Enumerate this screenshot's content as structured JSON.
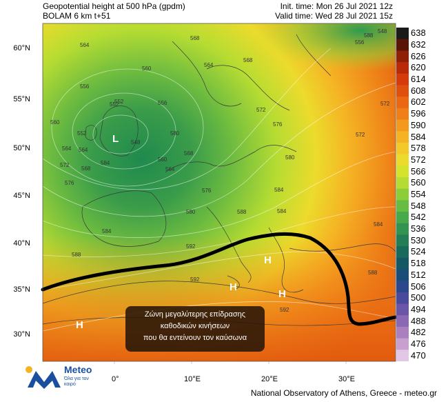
{
  "header": {
    "title_line1": "Geopotential height at 500 hPa (gpdm)",
    "title_line2": "BOLAM 6 km t+51",
    "init_time": "Init. time: Mon 26 Jul 2021 12z",
    "valid_time": "Valid time: Wed 28 Jul 2021 15z"
  },
  "axes": {
    "lat_labels": [
      "60°N",
      "55°N",
      "50°N",
      "45°N",
      "40°N",
      "35°N",
      "30°N"
    ],
    "lon_labels": [
      "0°",
      "10°E",
      "20°E",
      "30°E"
    ]
  },
  "colorbar": {
    "labels": [
      "638",
      "632",
      "626",
      "620",
      "614",
      "608",
      "602",
      "596",
      "590",
      "584",
      "578",
      "572",
      "566",
      "560",
      "554",
      "548",
      "542",
      "536",
      "530",
      "524",
      "518",
      "512",
      "506",
      "500",
      "494",
      "488",
      "482",
      "476",
      "470"
    ],
    "colors": [
      "#1a1a1a",
      "#5a1405",
      "#8f1f05",
      "#b82a08",
      "#d43a0a",
      "#e0500d",
      "#ea6812",
      "#f07f18",
      "#f39a1e",
      "#f5b324",
      "#f3c929",
      "#ecdb2c",
      "#d6e32c",
      "#b4dc32",
      "#8ccd3a",
      "#67bd42",
      "#47a94a",
      "#329450",
      "#237e55",
      "#186a5a",
      "#145866",
      "#1a4d78",
      "#2d478c",
      "#4a4a9c",
      "#6a55a8",
      "#8a68b4",
      "#aa80c0",
      "#c7a0d0",
      "#e2c8e4"
    ]
  },
  "map": {
    "contour_labels": [
      "548",
      "556",
      "564",
      "568",
      "560",
      "564",
      "568",
      "552",
      "556",
      "548",
      "560",
      "556",
      "552",
      "564",
      "572",
      "568",
      "576",
      "584",
      "572",
      "576",
      "588",
      "572",
      "572",
      "568",
      "564",
      "560",
      "580",
      "576",
      "584",
      "580",
      "584",
      "588",
      "592",
      "592",
      "584",
      "588",
      "588",
      "592",
      "552",
      "564",
      "580",
      "584"
    ],
    "high_marker": "H",
    "low_marker": "L"
  },
  "annotation": {
    "line1": "Ζώνη μεγαλύτερης επίδρασης",
    "line2": "καθοδικών κινήσεων",
    "line3": "που θα εντείνουν τον καύσωνα"
  },
  "logo": {
    "name": "Meteo",
    "tagline": "Όλα για τον καιρό"
  },
  "credit": "National Observatory of Athens, Greece - meteo.gr"
}
